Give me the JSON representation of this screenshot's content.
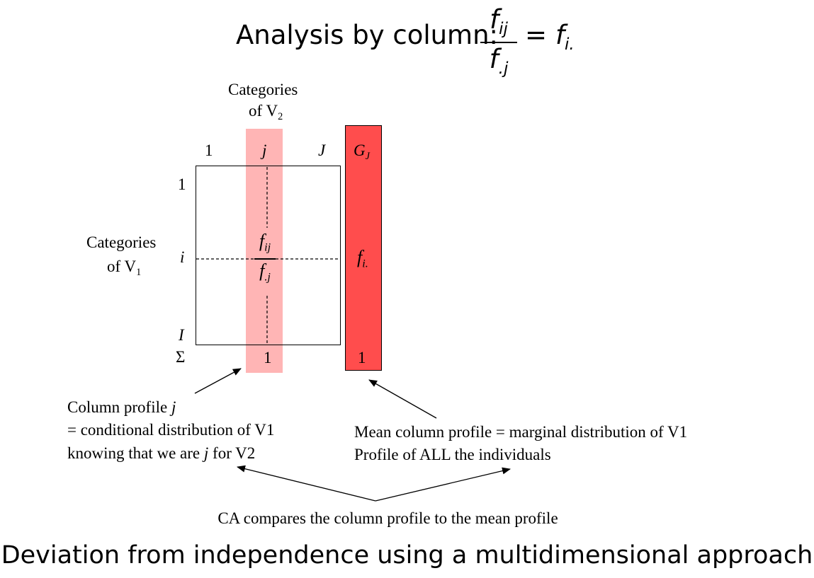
{
  "title": {
    "prefix": "Analysis by column:",
    "frac_numerator": "f",
    "frac_numerator_sub": "ij",
    "frac_denominator": "f",
    "frac_denominator_sub": ".j",
    "equals": "=",
    "rhs": "f",
    "rhs_sub": "i."
  },
  "diagram": {
    "v2_label_line1": "Categories",
    "v2_label_line2": "of V",
    "v2_label_sub": "2",
    "v1_label_line1": "Categories",
    "v1_label_line2": "of V",
    "v1_label_sub": "1",
    "col_1": "1",
    "col_j": "j",
    "col_J": "J",
    "col_G": "G",
    "col_G_sub": "J",
    "row_1": "1",
    "row_i": "i",
    "row_I": "I",
    "row_sigma": "Σ",
    "cell_numerator": "f",
    "cell_numerator_sub": "ij",
    "cell_denominator": "f",
    "cell_denominator_sub": ".j",
    "mean_value": "f",
    "mean_value_sub": "i.",
    "sum_col_j": "1",
    "sum_mean": "1"
  },
  "annotations": {
    "column_profile_line1": "Column profile ",
    "column_profile_line1_var": "j",
    "column_profile_line2": "= conditional distribution of V1",
    "column_profile_line3_pre": "knowing that we are ",
    "column_profile_line3_var": "j",
    "column_profile_line3_post": " for V2",
    "mean_profile_line1": "Mean column profile = marginal distribution of V1",
    "mean_profile_line2": "Profile of ALL the individuals",
    "caption": "CA compares the column profile to the mean profile"
  },
  "footer": "Deviation from independence using a multidimensional approach",
  "colors": {
    "column_band": "#ffb5b5",
    "mean_bar": "#ff4d4d"
  }
}
